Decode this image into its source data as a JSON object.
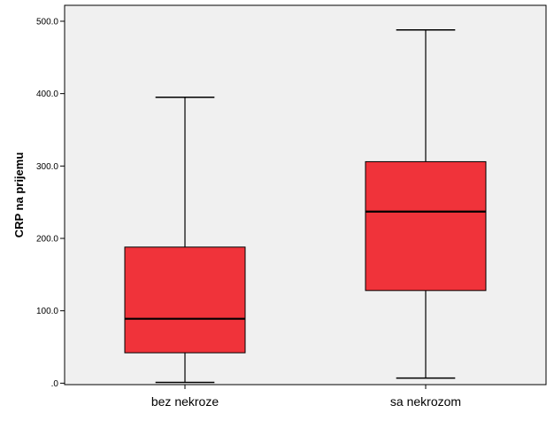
{
  "chart_data": {
    "type": "boxplot",
    "title": "",
    "xlabel": "",
    "ylabel": "CRP na prijemu",
    "ylim": [
      -2,
      522
    ],
    "yticks": [
      0,
      100,
      200,
      300,
      400,
      500
    ],
    "ytick_labels": [
      ".0",
      "100.0",
      "200.0",
      "300.0",
      "400.0",
      "500.0"
    ],
    "grid": false,
    "categories": [
      "bez nekroze",
      "sa nekrozom"
    ],
    "boxes": [
      {
        "category": "bez nekroze",
        "min": 1,
        "q1": 42,
        "median": 89,
        "q3": 188,
        "max": 395
      },
      {
        "category": "sa nekrozom",
        "min": 7,
        "q1": 128,
        "median": 237,
        "q3": 306,
        "max": 488
      }
    ],
    "colors": {
      "box_fill": "#f0333a",
      "plot_background": "#f0f0f0",
      "stroke": "#000000"
    }
  }
}
